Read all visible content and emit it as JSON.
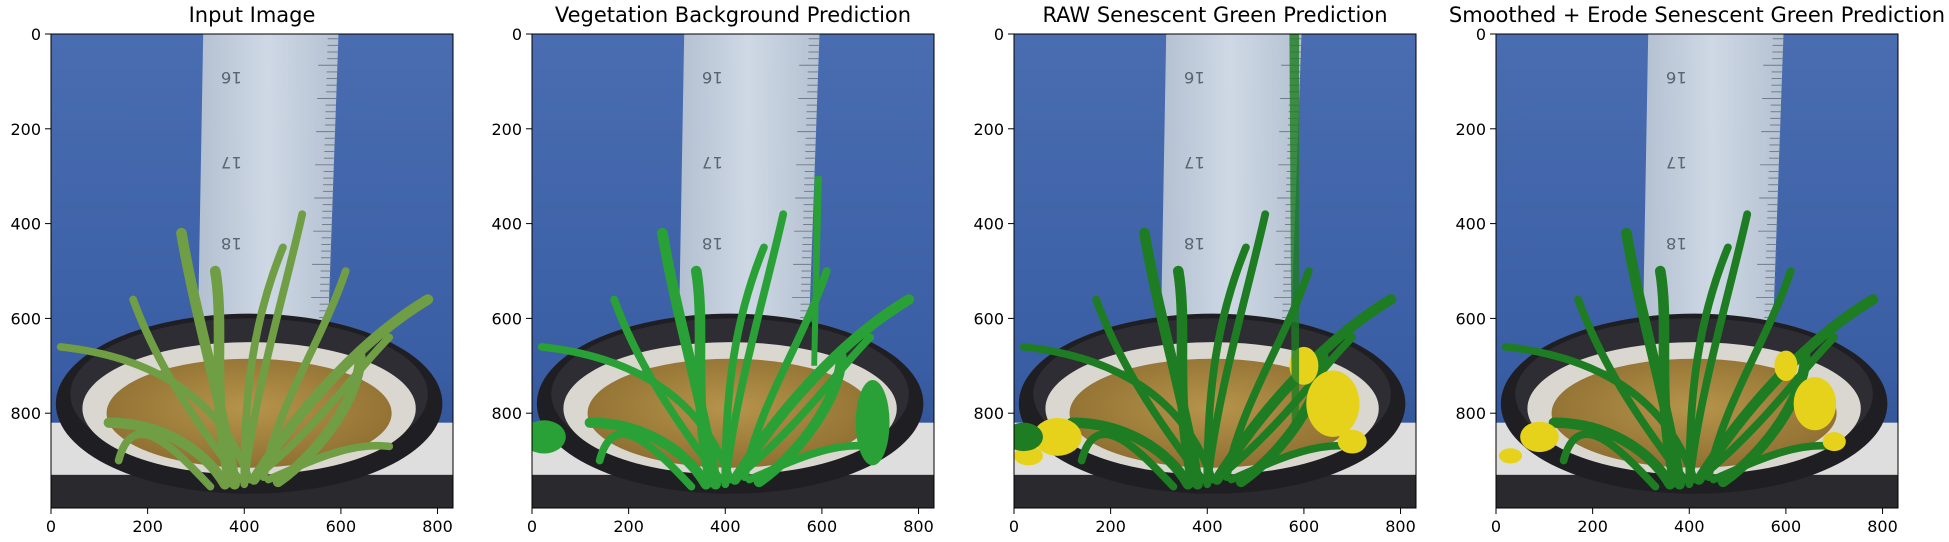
{
  "panels": [
    {
      "title": "Input Image",
      "overlay": "none"
    },
    {
      "title": "Vegetation Background Prediction",
      "overlay": "vegetation"
    },
    {
      "title": "RAW Senescent Green Prediction",
      "overlay": "raw"
    },
    {
      "title": "Smoothed + Erode Senescent Green Prediction",
      "overlay": "smoothed"
    }
  ],
  "axes": {
    "x_ticks": [
      "0",
      "200",
      "400",
      "600",
      "800"
    ],
    "y_ticks": [
      "0",
      "200",
      "400",
      "600",
      "800"
    ],
    "x_range": [
      0,
      832
    ],
    "y_range": [
      0,
      1000
    ]
  },
  "ruler_labels": [
    "16",
    "17",
    "18"
  ],
  "colors": {
    "wall_blue": "#3f63a8",
    "wall_blue_dark": "#22407e",
    "ruler": "#c9d3de",
    "pot": "#1f1f23",
    "paper": "#d9d7cf",
    "soil": "#a9873f",
    "plant_natural": "#6f9e45",
    "vegetation_overlay": "#2aa137",
    "senescent_green": "#1e7d22",
    "senescent_yellow": "#e6d21b",
    "floor": "#dedede"
  }
}
